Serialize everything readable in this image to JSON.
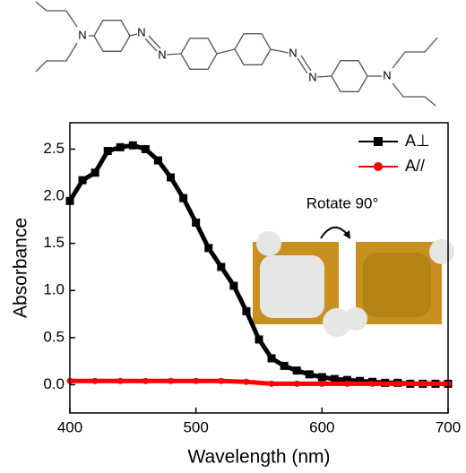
{
  "molecule_atoms": [
    "N",
    "N",
    "N",
    "N",
    "N",
    "N"
  ],
  "chart_data": {
    "type": "line",
    "xlabel": "Wavelength (nm)",
    "ylabel": "Absorbance",
    "xlim": [
      400,
      700
    ],
    "ylim": [
      -0.3,
      2.78
    ],
    "xticks": [
      400,
      500,
      600,
      700
    ],
    "yticks": [
      {
        "value": 0,
        "label": "0.0"
      },
      0.5,
      {
        "value": 1,
        "label": "1.0"
      },
      1.5,
      {
        "value": 2,
        "label": "2.0"
      },
      2.5
    ],
    "legend": "upper right",
    "annotation": "Rotate 90°",
    "series": [
      {
        "name": "A⊥",
        "color": "#000000",
        "marker": "square",
        "x": [
          400,
          410,
          420,
          430,
          440,
          450,
          460,
          470,
          480,
          490,
          500,
          510,
          520,
          530,
          540,
          550,
          560,
          570,
          580,
          590,
          600,
          610,
          620,
          630,
          640,
          650,
          660,
          670,
          680,
          690,
          700
        ],
        "values": [
          1.95,
          2.17,
          2.25,
          2.48,
          2.52,
          2.54,
          2.5,
          2.38,
          2.2,
          1.98,
          1.72,
          1.45,
          1.25,
          1.05,
          0.78,
          0.48,
          0.28,
          0.2,
          0.15,
          0.11,
          0.08,
          0.06,
          0.05,
          0.04,
          0.03,
          0.02,
          0.02,
          0.01,
          0.01,
          0.01,
          0.01
        ]
      },
      {
        "name": "A//",
        "color": "#ff0000",
        "marker": "circle",
        "x": [
          400,
          420,
          440,
          460,
          480,
          500,
          520,
          540,
          560,
          580,
          600,
          620,
          640,
          660,
          680,
          700
        ],
        "values": [
          0.04,
          0.04,
          0.04,
          0.04,
          0.04,
          0.04,
          0.04,
          0.03,
          0.01,
          0.01,
          0.01,
          0.01,
          0.01,
          0.01,
          0.01,
          0.01
        ]
      }
    ]
  }
}
